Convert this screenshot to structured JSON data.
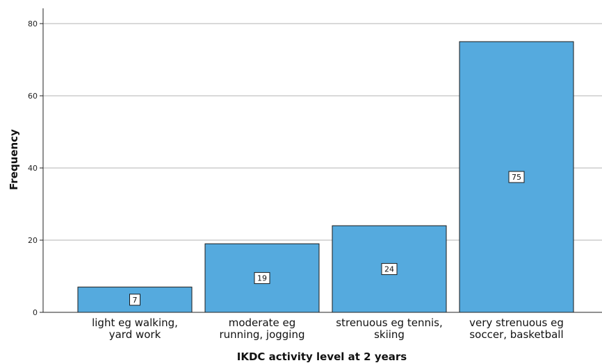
{
  "chart_data": {
    "type": "bar",
    "title": "",
    "xlabel": "IKDC activity level at 2 years",
    "ylabel": "Frequency",
    "categories": [
      [
        "light eg walking,",
        "yard work"
      ],
      [
        "moderate eg",
        "running, jogging"
      ],
      [
        "strenuous eg tennis,",
        "skiing"
      ],
      [
        "very strenuous eg",
        "soccer, basketball"
      ]
    ],
    "values": [
      7,
      19,
      24,
      75
    ],
    "ylim": [
      0,
      84
    ],
    "yticks": [
      0,
      20,
      40,
      60,
      80
    ],
    "grid": true,
    "legend": "none",
    "colors": {
      "bar_fill": "#55aade",
      "bar_stroke": "#1a1a1a",
      "grid": "#b3b3b3",
      "axis": "#222222"
    }
  }
}
